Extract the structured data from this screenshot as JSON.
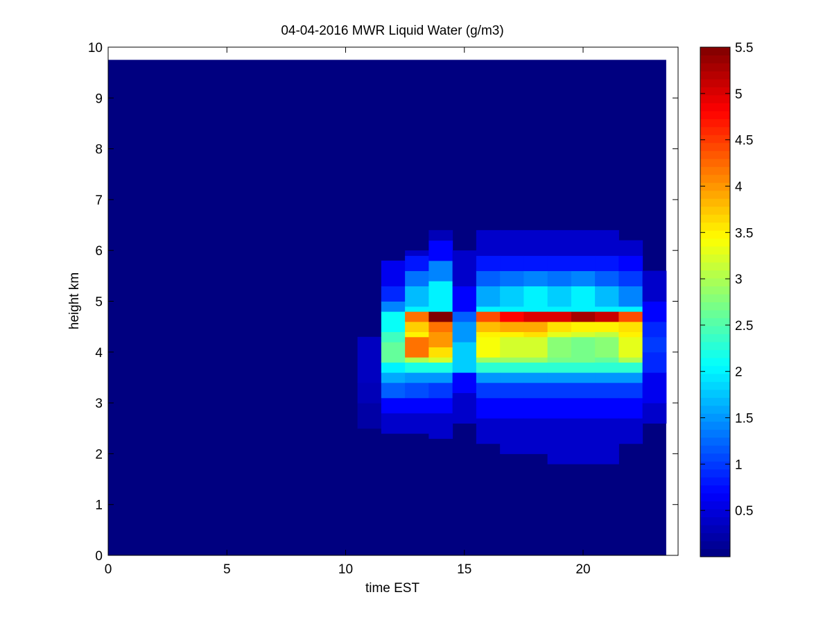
{
  "chart_data": {
    "type": "heatmap",
    "title": "04-04-2016 MWR Liquid Water (g/m3)",
    "xlabel": "time EST",
    "ylabel": "height km",
    "xlim": [
      0,
      24
    ],
    "ylim": [
      0,
      10
    ],
    "x_ticks": [
      "0",
      "5",
      "10",
      "15",
      "20"
    ],
    "y_ticks": [
      "0",
      "1",
      "2",
      "3",
      "4",
      "5",
      "6",
      "7",
      "8",
      "9",
      "10"
    ],
    "colorbar": {
      "colormap": "jet",
      "range": [
        0,
        5.5
      ],
      "ticks": [
        "0.5",
        "1",
        "1.5",
        "2",
        "2.5",
        "3",
        "3.5",
        "4",
        "4.5",
        "5",
        "5.5"
      ]
    },
    "grid": false,
    "data_extent": {
      "time_range": [
        0,
        23.5
      ],
      "height_range": [
        0,
        9.75
      ]
    },
    "columns": [
      {
        "t0": 10.5,
        "t1": 11.5,
        "cells": [
          [
            2.5,
            3.0,
            0.2
          ],
          [
            3.0,
            3.4,
            0.3
          ],
          [
            3.4,
            3.8,
            0.35
          ],
          [
            3.8,
            4.3,
            0.35
          ]
        ]
      },
      {
        "t0": 11.5,
        "t1": 12.5,
        "cells": [
          [
            2.4,
            2.8,
            0.4
          ],
          [
            2.8,
            3.1,
            0.7
          ],
          [
            3.1,
            3.4,
            1.2
          ],
          [
            3.4,
            3.6,
            1.6
          ],
          [
            3.6,
            3.8,
            2.0
          ],
          [
            3.8,
            4.2,
            2.6
          ],
          [
            4.2,
            4.4,
            2.4
          ],
          [
            4.4,
            4.8,
            2.1
          ],
          [
            4.8,
            5.0,
            1.4
          ],
          [
            5.0,
            5.3,
            0.9
          ],
          [
            5.3,
            5.8,
            0.6
          ]
        ]
      },
      {
        "t0": 12.5,
        "t1": 13.5,
        "cells": [
          [
            2.4,
            2.8,
            0.4
          ],
          [
            2.8,
            3.1,
            0.7
          ],
          [
            3.1,
            3.4,
            1.1
          ],
          [
            3.4,
            3.6,
            1.5
          ],
          [
            3.6,
            3.8,
            2.2
          ],
          [
            3.8,
            3.9,
            3.0
          ],
          [
            3.9,
            4.3,
            4.2
          ],
          [
            4.3,
            4.4,
            3.5
          ],
          [
            4.4,
            4.6,
            3.7
          ],
          [
            4.6,
            4.8,
            4.2
          ],
          [
            4.8,
            4.9,
            2.0
          ],
          [
            4.9,
            5.3,
            1.7
          ],
          [
            5.3,
            5.6,
            1.3
          ],
          [
            5.6,
            5.9,
            0.8
          ],
          [
            5.9,
            6.0,
            0.4
          ]
        ]
      },
      {
        "t0": 13.5,
        "t1": 14.5,
        "cells": [
          [
            2.3,
            2.8,
            0.4
          ],
          [
            2.8,
            3.1,
            0.7
          ],
          [
            3.1,
            3.4,
            1.0
          ],
          [
            3.4,
            3.6,
            1.5
          ],
          [
            3.6,
            3.8,
            2.2
          ],
          [
            3.8,
            3.9,
            3.2
          ],
          [
            3.9,
            4.1,
            3.6
          ],
          [
            4.1,
            4.4,
            4.0
          ],
          [
            4.4,
            4.6,
            4.2
          ],
          [
            4.6,
            4.8,
            5.5
          ],
          [
            4.8,
            4.9,
            2.0
          ],
          [
            4.9,
            5.4,
            2.0
          ],
          [
            5.4,
            5.8,
            1.4
          ],
          [
            5.8,
            6.2,
            0.7
          ],
          [
            6.2,
            6.4,
            0.3
          ]
        ]
      },
      {
        "t0": 14.5,
        "t1": 15.5,
        "cells": [
          [
            2.6,
            3.2,
            0.4
          ],
          [
            3.2,
            3.6,
            0.7
          ],
          [
            3.6,
            4.2,
            1.8
          ],
          [
            4.2,
            4.6,
            1.5
          ],
          [
            4.6,
            4.8,
            1.2
          ],
          [
            4.8,
            5.3,
            0.7
          ],
          [
            5.3,
            6.0,
            0.4
          ]
        ]
      },
      {
        "t0": 15.5,
        "t1": 16.5,
        "cells": [
          [
            2.2,
            2.7,
            0.4
          ],
          [
            2.7,
            3.1,
            0.7
          ],
          [
            3.1,
            3.4,
            1.0
          ],
          [
            3.4,
            3.6,
            1.5
          ],
          [
            3.6,
            3.8,
            2.3
          ],
          [
            3.8,
            3.9,
            2.9
          ],
          [
            3.9,
            4.3,
            3.4
          ],
          [
            4.3,
            4.4,
            3.5
          ],
          [
            4.4,
            4.6,
            3.8
          ],
          [
            4.6,
            4.8,
            4.4
          ],
          [
            4.8,
            4.9,
            2.0
          ],
          [
            4.9,
            5.3,
            1.6
          ],
          [
            5.3,
            5.6,
            1.2
          ],
          [
            5.6,
            5.9,
            0.8
          ],
          [
            5.9,
            6.4,
            0.4
          ]
        ]
      },
      {
        "t0": 16.5,
        "t1": 17.5,
        "cells": [
          [
            2.0,
            2.7,
            0.4
          ],
          [
            2.7,
            3.1,
            0.7
          ],
          [
            3.1,
            3.4,
            1.0
          ],
          [
            3.4,
            3.6,
            1.5
          ],
          [
            3.6,
            3.8,
            2.3
          ],
          [
            3.8,
            3.9,
            2.9
          ],
          [
            3.9,
            4.3,
            3.2
          ],
          [
            4.3,
            4.4,
            3.5
          ],
          [
            4.4,
            4.6,
            3.9
          ],
          [
            4.6,
            4.8,
            4.8
          ],
          [
            4.8,
            4.9,
            2.0
          ],
          [
            4.9,
            5.3,
            1.8
          ],
          [
            5.3,
            5.6,
            1.3
          ],
          [
            5.6,
            5.9,
            0.8
          ],
          [
            5.9,
            6.4,
            0.4
          ]
        ]
      },
      {
        "t0": 17.5,
        "t1": 18.5,
        "cells": [
          [
            2.0,
            2.7,
            0.4
          ],
          [
            2.7,
            3.1,
            0.7
          ],
          [
            3.1,
            3.4,
            1.0
          ],
          [
            3.4,
            3.6,
            1.5
          ],
          [
            3.6,
            3.8,
            2.3
          ],
          [
            3.8,
            3.9,
            2.9
          ],
          [
            3.9,
            4.3,
            3.2
          ],
          [
            4.3,
            4.4,
            3.6
          ],
          [
            4.4,
            4.6,
            3.9
          ],
          [
            4.6,
            4.8,
            5.0
          ],
          [
            4.8,
            4.9,
            2.0
          ],
          [
            4.9,
            5.3,
            2.0
          ],
          [
            5.3,
            5.6,
            1.4
          ],
          [
            5.6,
            5.9,
            0.8
          ],
          [
            5.9,
            6.4,
            0.4
          ]
        ]
      },
      {
        "t0": 18.5,
        "t1": 19.5,
        "cells": [
          [
            1.8,
            2.7,
            0.4
          ],
          [
            2.7,
            3.1,
            0.7
          ],
          [
            3.1,
            3.4,
            1.0
          ],
          [
            3.4,
            3.6,
            1.5
          ],
          [
            3.6,
            3.8,
            2.3
          ],
          [
            3.8,
            3.9,
            2.7
          ],
          [
            3.9,
            4.3,
            2.8
          ],
          [
            4.3,
            4.4,
            3.3
          ],
          [
            4.4,
            4.6,
            3.6
          ],
          [
            4.6,
            4.8,
            5.0
          ],
          [
            4.8,
            4.9,
            2.0
          ],
          [
            4.9,
            5.3,
            1.8
          ],
          [
            5.3,
            5.6,
            1.3
          ],
          [
            5.6,
            5.9,
            0.8
          ],
          [
            5.9,
            6.4,
            0.4
          ]
        ]
      },
      {
        "t0": 19.5,
        "t1": 20.5,
        "cells": [
          [
            1.8,
            2.7,
            0.4
          ],
          [
            2.7,
            3.1,
            0.7
          ],
          [
            3.1,
            3.4,
            1.0
          ],
          [
            3.4,
            3.6,
            1.5
          ],
          [
            3.6,
            3.8,
            2.3
          ],
          [
            3.8,
            3.9,
            2.7
          ],
          [
            3.9,
            4.3,
            2.7
          ],
          [
            4.3,
            4.4,
            3.2
          ],
          [
            4.4,
            4.6,
            3.5
          ],
          [
            4.6,
            4.8,
            5.3
          ],
          [
            4.8,
            4.9,
            2.0
          ],
          [
            4.9,
            5.3,
            2.0
          ],
          [
            5.3,
            5.6,
            1.4
          ],
          [
            5.6,
            5.9,
            0.8
          ],
          [
            5.9,
            6.4,
            0.4
          ]
        ]
      },
      {
        "t0": 20.5,
        "t1": 21.5,
        "cells": [
          [
            1.8,
            2.7,
            0.4
          ],
          [
            2.7,
            3.1,
            0.7
          ],
          [
            3.1,
            3.4,
            1.0
          ],
          [
            3.4,
            3.6,
            1.5
          ],
          [
            3.6,
            3.8,
            2.3
          ],
          [
            3.8,
            3.9,
            2.6
          ],
          [
            3.9,
            4.3,
            2.8
          ],
          [
            4.3,
            4.4,
            3.1
          ],
          [
            4.4,
            4.6,
            3.5
          ],
          [
            4.6,
            4.8,
            5.1
          ],
          [
            4.8,
            4.9,
            2.0
          ],
          [
            4.9,
            5.3,
            1.7
          ],
          [
            5.3,
            5.6,
            1.2
          ],
          [
            5.6,
            5.9,
            0.8
          ],
          [
            5.9,
            6.4,
            0.4
          ]
        ]
      },
      {
        "t0": 21.5,
        "t1": 22.5,
        "cells": [
          [
            2.2,
            2.7,
            0.4
          ],
          [
            2.7,
            3.1,
            0.7
          ],
          [
            3.1,
            3.4,
            1.0
          ],
          [
            3.4,
            3.6,
            1.5
          ],
          [
            3.6,
            3.8,
            2.3
          ],
          [
            3.8,
            3.9,
            3.0
          ],
          [
            3.9,
            4.3,
            3.3
          ],
          [
            4.3,
            4.4,
            3.5
          ],
          [
            4.4,
            4.6,
            3.6
          ],
          [
            4.6,
            4.8,
            4.4
          ],
          [
            4.8,
            4.9,
            2.0
          ],
          [
            4.9,
            5.3,
            1.4
          ],
          [
            5.3,
            5.6,
            1.0
          ],
          [
            5.6,
            5.9,
            0.7
          ],
          [
            5.9,
            6.2,
            0.4
          ]
        ]
      },
      {
        "t0": 22.5,
        "t1": 23.5,
        "cells": [
          [
            2.6,
            3.0,
            0.4
          ],
          [
            3.0,
            3.6,
            0.6
          ],
          [
            3.6,
            4.0,
            0.9
          ],
          [
            4.0,
            4.3,
            1.0
          ],
          [
            4.3,
            4.6,
            0.9
          ],
          [
            4.6,
            5.0,
            0.7
          ],
          [
            5.0,
            5.6,
            0.4
          ]
        ]
      }
    ]
  }
}
